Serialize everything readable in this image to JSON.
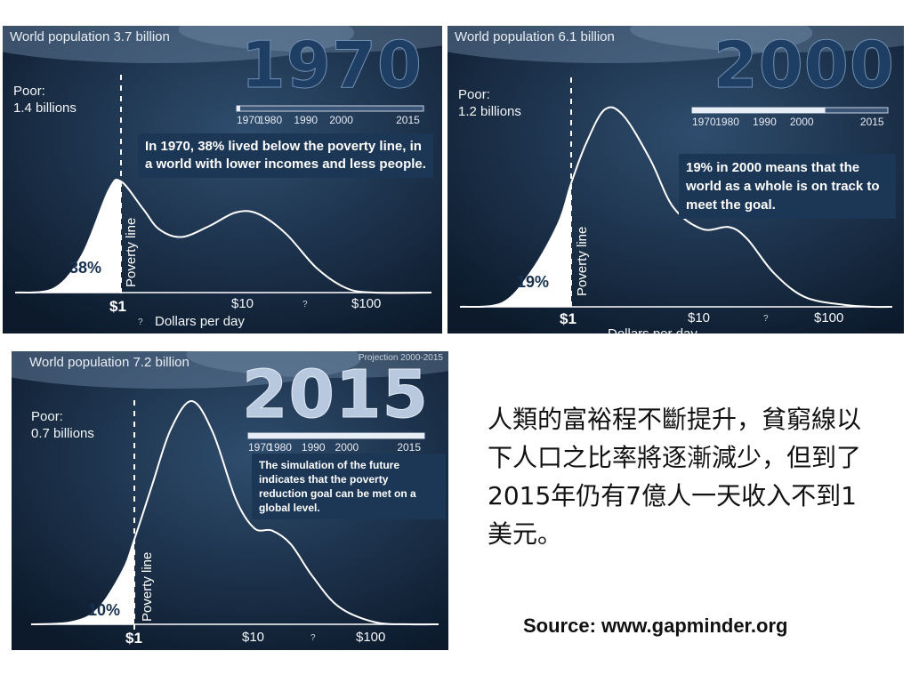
{
  "chart_data": [
    {
      "type": "area",
      "year": "1970",
      "population": "World population 3.7 billion",
      "poor": [
        "Poor:",
        "1.4 billions"
      ],
      "timeline_ticks": [
        "1970",
        "1980",
        "1990",
        "2000",
        "2015"
      ],
      "timeline_progress": 0.0,
      "note": "In 1970, 38% lived below the poverty line, in a world with lower incomes and less people.",
      "below_line_percent": "38%",
      "x_ticks": [
        "$1",
        "$10",
        "$100"
      ],
      "x_unknown_mark": "?",
      "xlabel": "Dollars per day",
      "poverty_label": "Poverty line",
      "xscale": "log",
      "curve": {
        "x": [
          0.3,
          0.5,
          0.8,
          1.0,
          1.5,
          2,
          3,
          5,
          8,
          12,
          20,
          35,
          60,
          100
        ],
        "y": [
          0.04,
          0.35,
          0.92,
          1.0,
          0.75,
          0.57,
          0.5,
          0.6,
          0.72,
          0.71,
          0.53,
          0.22,
          0.04,
          0.0
        ]
      }
    },
    {
      "type": "area",
      "year": "2000",
      "population": "World population 6.1 billion",
      "poor": [
        "Poor:",
        "1.2 billions"
      ],
      "timeline_ticks": [
        "1970",
        "1980",
        "1990",
        "2000",
        "2015"
      ],
      "timeline_progress": 0.68,
      "note": "19% in 2000 means that the world as a whole is on track to meet the goal.",
      "below_line_percent": "19%",
      "x_ticks": [
        "$1",
        "$10",
        "$100"
      ],
      "x_unknown_mark": "?",
      "xlabel": "Dollars per day",
      "poverty_label": "Poverty line",
      "xscale": "log",
      "curve": {
        "x": [
          0.3,
          0.5,
          0.8,
          1.0,
          1.3,
          1.8,
          2.5,
          4,
          6,
          10,
          16,
          22,
          35,
          60,
          120,
          200
        ],
        "y": [
          0.02,
          0.18,
          0.42,
          0.62,
          0.82,
          0.99,
          0.96,
          0.74,
          0.5,
          0.39,
          0.4,
          0.34,
          0.17,
          0.05,
          0.01,
          0.0
        ]
      }
    },
    {
      "type": "area",
      "year": "2015",
      "population": "World population 7.2 billion",
      "projection": "Projection 2000-2015",
      "poor": [
        "Poor:",
        "0.7 billions"
      ],
      "timeline_ticks": [
        "1970",
        "1980",
        "1990",
        "2000",
        "2015"
      ],
      "timeline_progress": 1.0,
      "note": "The simulation of the future indicates that the poverty reduction goal can be met on a global level.",
      "below_line_percent": "10%",
      "x_ticks": [
        "$1",
        "$10",
        "$100"
      ],
      "x_unknown_mark": "?",
      "xlabel": "",
      "poverty_label": "Poverty line",
      "xscale": "log",
      "curve": {
        "x": [
          0.3,
          0.5,
          0.8,
          1.0,
          1.4,
          2,
          3,
          4.5,
          7,
          10,
          14,
          20,
          30,
          50,
          100,
          200
        ],
        "y": [
          0.01,
          0.07,
          0.24,
          0.38,
          0.62,
          0.87,
          1.0,
          0.86,
          0.56,
          0.43,
          0.42,
          0.36,
          0.22,
          0.08,
          0.01,
          0.0
        ]
      }
    }
  ],
  "caption": "人類的富裕程不斷提升，貧窮線以下人口之比率將逐漸減少，但到了2015年仍有7億人一天收入不到1美元。",
  "source": "Source: www.gapminder.org",
  "colors": {
    "panel_bg": "#0f2036",
    "note_bg": "#1c3656",
    "curve": "#ffffff",
    "year_1970": "#1e3f63",
    "year_2000": "#1e3f63",
    "year_2015": "#b8c9df"
  }
}
